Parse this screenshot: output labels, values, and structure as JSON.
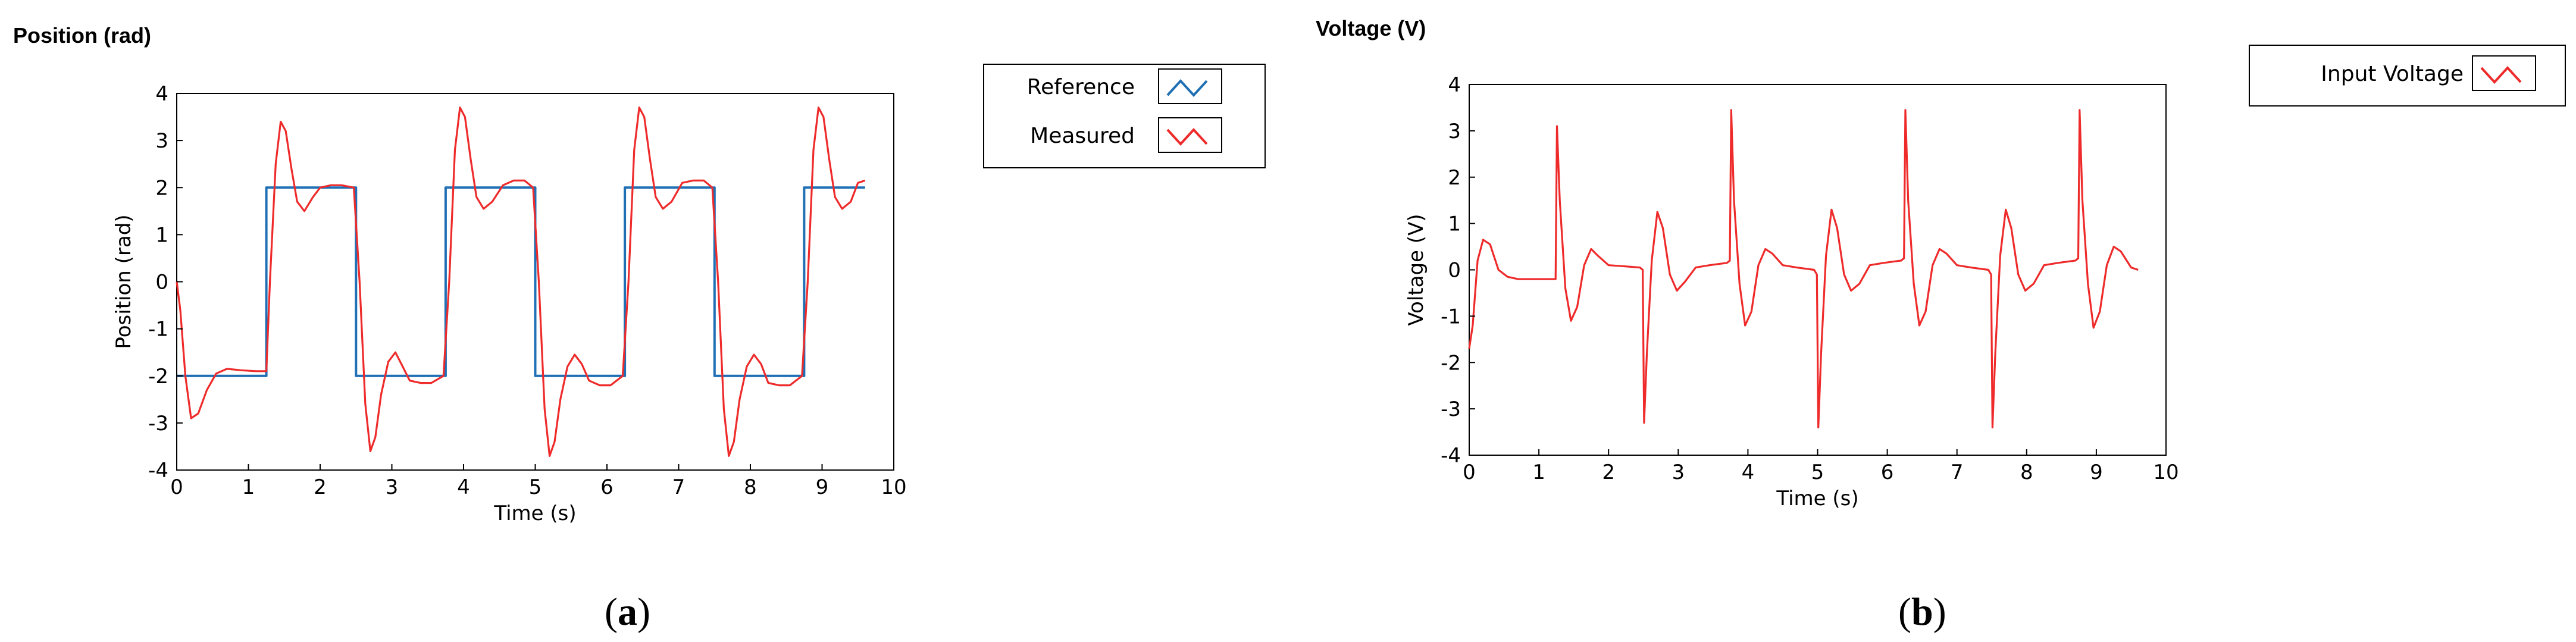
{
  "panels": [
    {
      "id": "a",
      "panel_title": "Position (rad)",
      "caption_open": "(",
      "caption_letter": "a",
      "caption_close": ")",
      "legend": [
        {
          "label": "Reference",
          "color": "#1f6fb5"
        },
        {
          "label": "Measured",
          "color": "#ee2a2a"
        }
      ]
    },
    {
      "id": "b",
      "panel_title": "Voltage (V)",
      "caption_open": "(",
      "caption_letter": "b",
      "caption_close": ")",
      "legend": [
        {
          "label": "Input Voltage",
          "color": "#ee2a2a"
        }
      ]
    }
  ],
  "chart_data": [
    {
      "type": "line",
      "title": "Position (rad)",
      "xlabel": "Time (s)",
      "ylabel": "Position (rad)",
      "xlim": [
        0,
        10
      ],
      "ylim": [
        -4,
        4
      ],
      "xticks": [
        0,
        1,
        2,
        3,
        4,
        5,
        6,
        7,
        8,
        9,
        10
      ],
      "yticks": [
        4,
        3,
        2,
        1,
        0,
        -1,
        -2,
        -3,
        -4
      ],
      "grid": false,
      "legend_position": "outside-right",
      "series": [
        {
          "name": "Reference",
          "color": "#1f6fb5",
          "x": [
            0,
            1.25,
            1.25,
            2.5,
            2.5,
            3.75,
            3.75,
            5.0,
            5.0,
            6.25,
            6.25,
            7.5,
            7.5,
            8.75,
            8.75,
            9.6
          ],
          "y": [
            -2,
            -2,
            2,
            2,
            -2,
            -2,
            2,
            2,
            -2,
            -2,
            2,
            2,
            -2,
            -2,
            2,
            2
          ]
        },
        {
          "name": "Measured",
          "color": "#ee2a2a",
          "x": [
            0,
            0.05,
            0.12,
            0.2,
            0.3,
            0.42,
            0.55,
            0.7,
            0.9,
            1.1,
            1.25,
            1.3,
            1.38,
            1.45,
            1.52,
            1.6,
            1.68,
            1.78,
            1.9,
            2.0,
            2.15,
            2.3,
            2.47,
            2.55,
            2.63,
            2.7,
            2.77,
            2.85,
            2.95,
            3.05,
            3.15,
            3.25,
            3.4,
            3.55,
            3.72,
            3.8,
            3.88,
            3.95,
            4.02,
            4.1,
            4.18,
            4.28,
            4.4,
            4.55,
            4.7,
            4.85,
            4.97,
            5.05,
            5.13,
            5.2,
            5.27,
            5.35,
            5.45,
            5.55,
            5.65,
            5.75,
            5.9,
            6.05,
            6.22,
            6.3,
            6.38,
            6.45,
            6.52,
            6.6,
            6.68,
            6.78,
            6.9,
            7.05,
            7.2,
            7.35,
            7.47,
            7.55,
            7.63,
            7.7,
            7.77,
            7.85,
            7.95,
            8.05,
            8.15,
            8.25,
            8.4,
            8.55,
            8.72,
            8.8,
            8.88,
            8.95,
            9.02,
            9.1,
            9.18,
            9.28,
            9.4,
            9.5,
            9.6
          ],
          "y": [
            0.0,
            -0.6,
            -2.0,
            -2.9,
            -2.8,
            -2.3,
            -1.95,
            -1.85,
            -1.88,
            -1.9,
            -1.9,
            0.0,
            2.5,
            3.4,
            3.2,
            2.4,
            1.7,
            1.5,
            1.8,
            2.0,
            2.05,
            2.05,
            2.0,
            0.0,
            -2.6,
            -3.6,
            -3.3,
            -2.4,
            -1.7,
            -1.5,
            -1.8,
            -2.1,
            -2.15,
            -2.15,
            -2.0,
            0.0,
            2.8,
            3.7,
            3.5,
            2.6,
            1.8,
            1.55,
            1.7,
            2.05,
            2.15,
            2.15,
            2.0,
            0.0,
            -2.7,
            -3.7,
            -3.4,
            -2.5,
            -1.8,
            -1.55,
            -1.75,
            -2.1,
            -2.2,
            -2.2,
            -2.0,
            0.0,
            2.8,
            3.7,
            3.5,
            2.6,
            1.8,
            1.55,
            1.7,
            2.1,
            2.15,
            2.15,
            2.0,
            0.0,
            -2.7,
            -3.7,
            -3.4,
            -2.5,
            -1.8,
            -1.55,
            -1.75,
            -2.15,
            -2.2,
            -2.2,
            -2.0,
            0.0,
            2.8,
            3.7,
            3.5,
            2.6,
            1.8,
            1.55,
            1.7,
            2.1,
            2.15
          ]
        }
      ]
    },
    {
      "type": "line",
      "title": "Voltage (V)",
      "xlabel": "Time (s)",
      "ylabel": "Voltage (V)",
      "xlim": [
        0,
        10
      ],
      "ylim": [
        -4,
        4
      ],
      "xticks": [
        0,
        1,
        2,
        3,
        4,
        5,
        6,
        7,
        8,
        9,
        10
      ],
      "yticks": [
        4,
        3,
        2,
        1,
        0,
        -1,
        -2,
        -3,
        -4
      ],
      "grid": false,
      "legend_position": "outside-right",
      "series": [
        {
          "name": "Input Voltage",
          "color": "#ee2a2a",
          "x": [
            0,
            0.05,
            0.12,
            0.2,
            0.3,
            0.42,
            0.55,
            0.7,
            0.9,
            1.1,
            1.24,
            1.26,
            1.3,
            1.38,
            1.46,
            1.55,
            1.65,
            1.75,
            1.85,
            2.0,
            2.2,
            2.45,
            2.49,
            2.51,
            2.55,
            2.62,
            2.7,
            2.78,
            2.88,
            2.98,
            3.1,
            3.25,
            3.45,
            3.7,
            3.74,
            3.76,
            3.8,
            3.88,
            3.96,
            4.05,
            4.15,
            4.25,
            4.35,
            4.5,
            4.7,
            4.95,
            4.99,
            5.01,
            5.05,
            5.12,
            5.2,
            5.28,
            5.38,
            5.48,
            5.6,
            5.75,
            5.95,
            6.2,
            6.24,
            6.26,
            6.3,
            6.38,
            6.46,
            6.55,
            6.65,
            6.75,
            6.85,
            7.0,
            7.2,
            7.45,
            7.49,
            7.51,
            7.55,
            7.62,
            7.7,
            7.78,
            7.88,
            7.98,
            8.1,
            8.25,
            8.45,
            8.7,
            8.74,
            8.76,
            8.8,
            8.88,
            8.96,
            9.05,
            9.15,
            9.25,
            9.35,
            9.5,
            9.6
          ],
          "y": [
            -1.7,
            -1.2,
            0.2,
            0.65,
            0.55,
            0.0,
            -0.15,
            -0.2,
            -0.2,
            -0.2,
            -0.2,
            3.1,
            1.5,
            -0.4,
            -1.1,
            -0.8,
            0.1,
            0.45,
            0.3,
            0.1,
            0.08,
            0.05,
            0.0,
            -3.3,
            -1.8,
            0.2,
            1.25,
            0.9,
            -0.1,
            -0.45,
            -0.25,
            0.05,
            0.1,
            0.15,
            0.2,
            3.45,
            1.5,
            -0.3,
            -1.2,
            -0.9,
            0.1,
            0.45,
            0.35,
            0.1,
            0.05,
            0.0,
            -0.1,
            -3.4,
            -1.8,
            0.3,
            1.3,
            0.9,
            -0.1,
            -0.45,
            -0.3,
            0.1,
            0.15,
            0.2,
            0.25,
            3.45,
            1.5,
            -0.3,
            -1.2,
            -0.9,
            0.1,
            0.45,
            0.35,
            0.1,
            0.05,
            0.0,
            -0.1,
            -3.4,
            -1.8,
            0.3,
            1.3,
            0.9,
            -0.1,
            -0.45,
            -0.3,
            0.1,
            0.15,
            0.2,
            0.25,
            3.45,
            1.5,
            -0.3,
            -1.25,
            -0.9,
            0.1,
            0.5,
            0.4,
            0.05,
            0.0
          ]
        }
      ]
    }
  ]
}
